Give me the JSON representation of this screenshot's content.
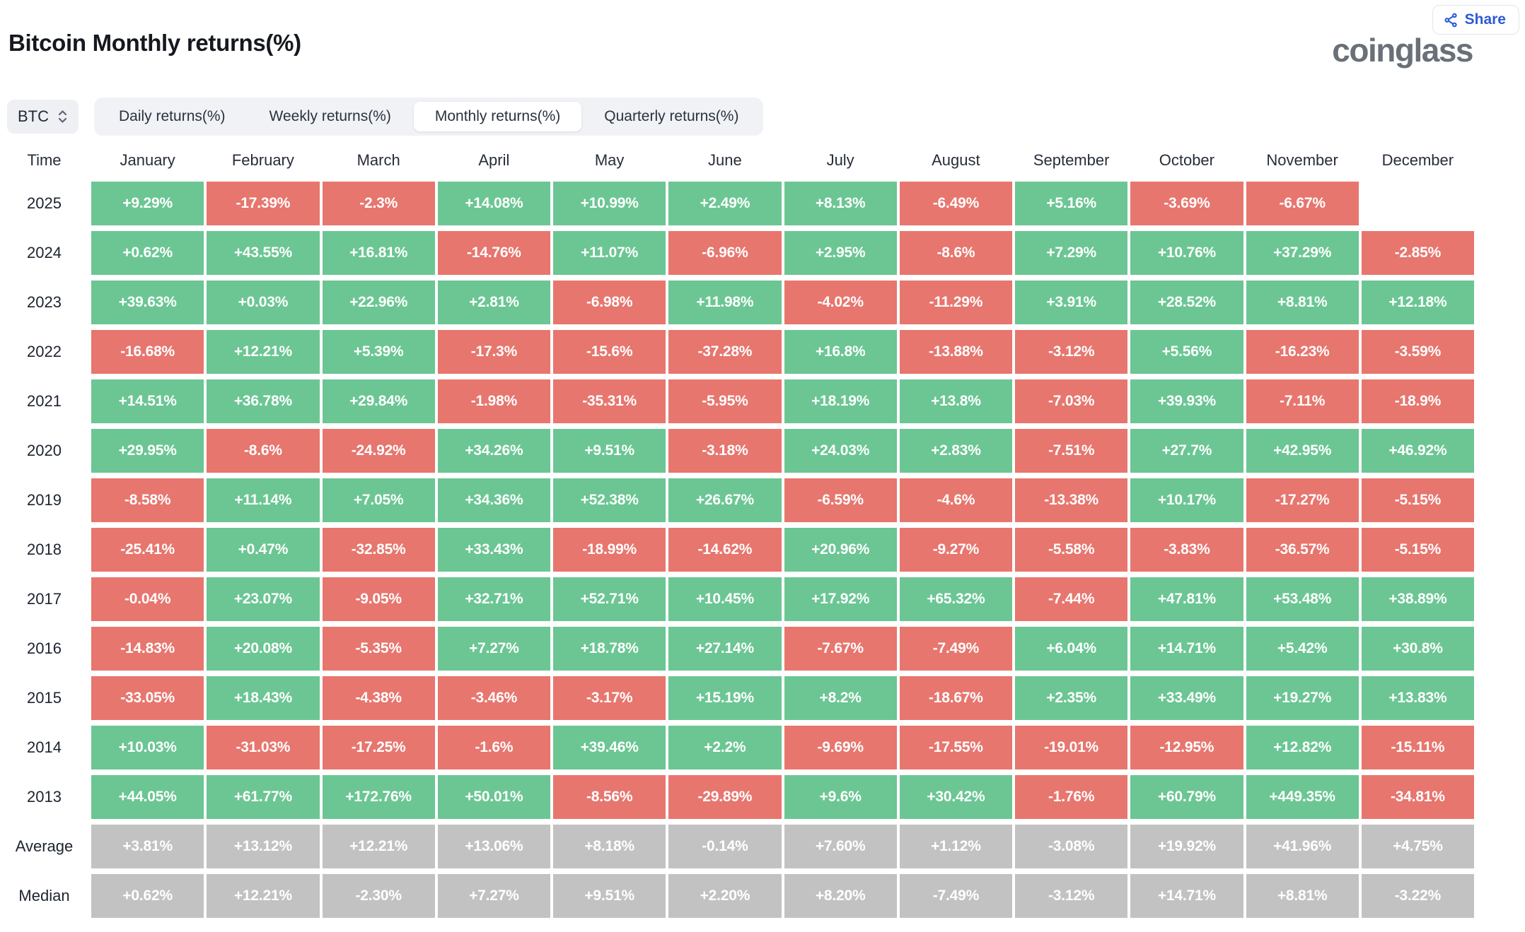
{
  "header": {
    "title": "Bitcoin Monthly returns(%)",
    "share_label": "Share",
    "logo_text": "coinglass"
  },
  "controls": {
    "coin_selector": {
      "value": "BTC"
    },
    "tabs": [
      {
        "label": "Daily returns(%)",
        "active": false
      },
      {
        "label": "Weekly returns(%)",
        "active": false
      },
      {
        "label": "Monthly returns(%)",
        "active": true
      },
      {
        "label": "Quarterly returns(%)",
        "active": false
      }
    ]
  },
  "chart_data": {
    "type": "heatmap",
    "title": "Bitcoin Monthly returns(%)",
    "row_header": "Time",
    "columns": [
      "January",
      "February",
      "March",
      "April",
      "May",
      "June",
      "July",
      "August",
      "September",
      "October",
      "November",
      "December"
    ],
    "rows": [
      {
        "label": "2025",
        "type": "year",
        "values": [
          "+9.29%",
          "-17.39%",
          "-2.3%",
          "+14.08%",
          "+10.99%",
          "+2.49%",
          "+8.13%",
          "-6.49%",
          "+5.16%",
          "-3.69%",
          "-6.67%",
          null
        ]
      },
      {
        "label": "2024",
        "type": "year",
        "values": [
          "+0.62%",
          "+43.55%",
          "+16.81%",
          "-14.76%",
          "+11.07%",
          "-6.96%",
          "+2.95%",
          "-8.6%",
          "+7.29%",
          "+10.76%",
          "+37.29%",
          "-2.85%"
        ]
      },
      {
        "label": "2023",
        "type": "year",
        "values": [
          "+39.63%",
          "+0.03%",
          "+22.96%",
          "+2.81%",
          "-6.98%",
          "+11.98%",
          "-4.02%",
          "-11.29%",
          "+3.91%",
          "+28.52%",
          "+8.81%",
          "+12.18%"
        ]
      },
      {
        "label": "2022",
        "type": "year",
        "values": [
          "-16.68%",
          "+12.21%",
          "+5.39%",
          "-17.3%",
          "-15.6%",
          "-37.28%",
          "+16.8%",
          "-13.88%",
          "-3.12%",
          "+5.56%",
          "-16.23%",
          "-3.59%"
        ]
      },
      {
        "label": "2021",
        "type": "year",
        "values": [
          "+14.51%",
          "+36.78%",
          "+29.84%",
          "-1.98%",
          "-35.31%",
          "-5.95%",
          "+18.19%",
          "+13.8%",
          "-7.03%",
          "+39.93%",
          "-7.11%",
          "-18.9%"
        ]
      },
      {
        "label": "2020",
        "type": "year",
        "values": [
          "+29.95%",
          "-8.6%",
          "-24.92%",
          "+34.26%",
          "+9.51%",
          "-3.18%",
          "+24.03%",
          "+2.83%",
          "-7.51%",
          "+27.7%",
          "+42.95%",
          "+46.92%"
        ]
      },
      {
        "label": "2019",
        "type": "year",
        "values": [
          "-8.58%",
          "+11.14%",
          "+7.05%",
          "+34.36%",
          "+52.38%",
          "+26.67%",
          "-6.59%",
          "-4.6%",
          "-13.38%",
          "+10.17%",
          "-17.27%",
          "-5.15%"
        ]
      },
      {
        "label": "2018",
        "type": "year",
        "values": [
          "-25.41%",
          "+0.47%",
          "-32.85%",
          "+33.43%",
          "-18.99%",
          "-14.62%",
          "+20.96%",
          "-9.27%",
          "-5.58%",
          "-3.83%",
          "-36.57%",
          "-5.15%"
        ]
      },
      {
        "label": "2017",
        "type": "year",
        "values": [
          "-0.04%",
          "+23.07%",
          "-9.05%",
          "+32.71%",
          "+52.71%",
          "+10.45%",
          "+17.92%",
          "+65.32%",
          "-7.44%",
          "+47.81%",
          "+53.48%",
          "+38.89%"
        ]
      },
      {
        "label": "2016",
        "type": "year",
        "values": [
          "-14.83%",
          "+20.08%",
          "-5.35%",
          "+7.27%",
          "+18.78%",
          "+27.14%",
          "-7.67%",
          "-7.49%",
          "+6.04%",
          "+14.71%",
          "+5.42%",
          "+30.8%"
        ]
      },
      {
        "label": "2015",
        "type": "year",
        "values": [
          "-33.05%",
          "+18.43%",
          "-4.38%",
          "-3.46%",
          "-3.17%",
          "+15.19%",
          "+8.2%",
          "-18.67%",
          "+2.35%",
          "+33.49%",
          "+19.27%",
          "+13.83%"
        ]
      },
      {
        "label": "2014",
        "type": "year",
        "values": [
          "+10.03%",
          "-31.03%",
          "-17.25%",
          "-1.6%",
          "+39.46%",
          "+2.2%",
          "-9.69%",
          "-17.55%",
          "-19.01%",
          "-12.95%",
          "+12.82%",
          "-15.11%"
        ]
      },
      {
        "label": "2013",
        "type": "year",
        "values": [
          "+44.05%",
          "+61.77%",
          "+172.76%",
          "+50.01%",
          "-8.56%",
          "-29.89%",
          "+9.6%",
          "+30.42%",
          "-1.76%",
          "+60.79%",
          "+449.35%",
          "-34.81%"
        ]
      },
      {
        "label": "Average",
        "type": "summary",
        "values": [
          "+3.81%",
          "+13.12%",
          "+12.21%",
          "+13.06%",
          "+8.18%",
          "-0.14%",
          "+7.60%",
          "+1.12%",
          "-3.08%",
          "+19.92%",
          "+41.96%",
          "+4.75%"
        ]
      },
      {
        "label": "Median",
        "type": "summary",
        "values": [
          "+0.62%",
          "+12.21%",
          "-2.30%",
          "+7.27%",
          "+9.51%",
          "+2.20%",
          "+8.20%",
          "-7.49%",
          "-3.12%",
          "+14.71%",
          "+8.81%",
          "-3.22%"
        ]
      }
    ],
    "colors": {
      "positive": "#6bc693",
      "negative": "#e7766e",
      "summary": "#c2c2c2",
      "accent_blue": "#2d5bd7"
    },
    "legend_position": "none"
  }
}
